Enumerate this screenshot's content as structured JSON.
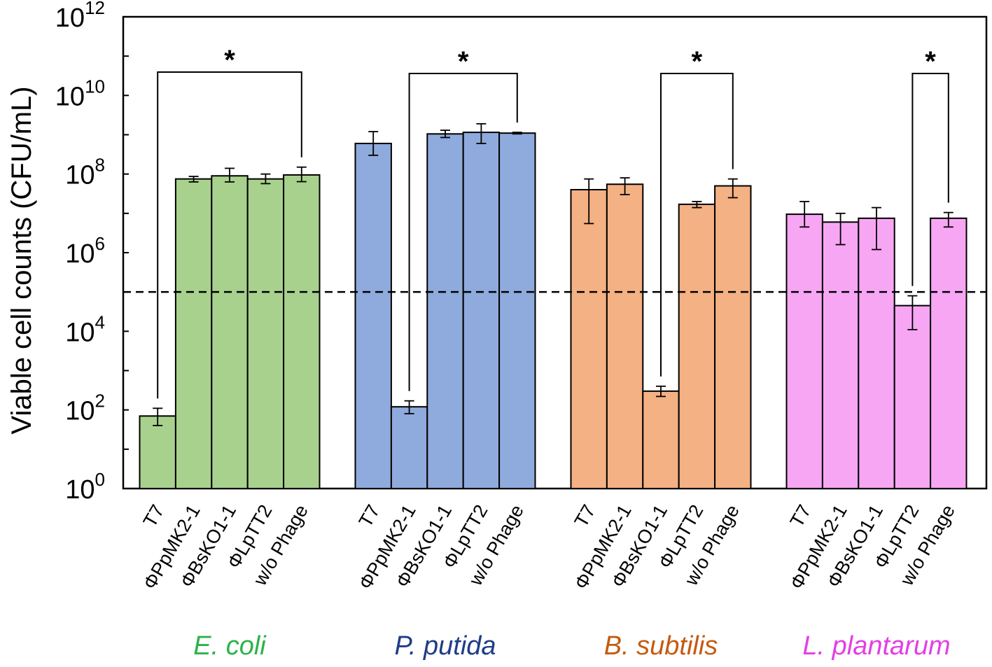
{
  "chart_data": {
    "type": "bar",
    "ylabel": "Viable cell counts (CFU/mL)",
    "yscale": "log10",
    "ylim_exponents": [
      0,
      12
    ],
    "y_ticks": [
      {
        "base": "10",
        "exp": "0"
      },
      {
        "base": "10",
        "exp": "2"
      },
      {
        "base": "10",
        "exp": "4"
      },
      {
        "base": "10",
        "exp": "6"
      },
      {
        "base": "10",
        "exp": "8"
      },
      {
        "base": "10",
        "exp": "10"
      },
      {
        "base": "10",
        "exp": "12"
      }
    ],
    "categories": [
      "T7",
      "ΦPpMK2-1",
      "ΦBsKO1-1",
      "ΦLpTT2",
      "w/o Phage"
    ],
    "detection_limit": 100000,
    "groups": [
      {
        "name": "E. coli",
        "color": "#a9d18e",
        "label_color": "#2bb34a",
        "values": [
          70,
          75000000,
          90000000,
          75000000,
          95000000
        ],
        "err_low": [
          40,
          63000000,
          63000000,
          57000000,
          64000000
        ],
        "err_high": [
          110,
          87000000,
          140000000,
          100000000,
          150000000
        ],
        "significance": {
          "from": 0,
          "to": 4,
          "label": "*"
        }
      },
      {
        "name": "P. putida",
        "color": "#8faadc",
        "label_color": "#1f3c88",
        "values": [
          600000000,
          120,
          1050000000,
          1150000000,
          1100000000
        ],
        "err_low": [
          300000000,
          80,
          850000000,
          600000000,
          1050000000
        ],
        "err_high": [
          1200000000,
          170,
          1300000000,
          1900000000,
          1150000000
        ],
        "significance": {
          "from": 1,
          "to": 4,
          "label": "*"
        }
      },
      {
        "name": "B. subtilis",
        "color": "#f4b183",
        "label_color": "#c55a11",
        "values": [
          40000000,
          55000000,
          300,
          17000000,
          50000000
        ],
        "err_low": [
          5500000,
          30000000,
          220,
          14000000,
          25000000
        ],
        "err_high": [
          75000000,
          80000000,
          400,
          20000000,
          75000000
        ],
        "significance": {
          "from": 2,
          "to": 4,
          "label": "*"
        }
      },
      {
        "name": "L. plantarum",
        "color": "#f7a6f4",
        "label_color": "#e43ee4",
        "values": [
          9500000,
          6000000,
          7500000,
          45000,
          7500000
        ],
        "err_low": [
          4500000,
          1600000,
          1200000,
          11000,
          4500000
        ],
        "err_high": [
          20000000,
          10000000,
          14000000,
          80000,
          10500000
        ],
        "significance": {
          "from": 3,
          "to": 4,
          "label": "*"
        }
      }
    ]
  }
}
